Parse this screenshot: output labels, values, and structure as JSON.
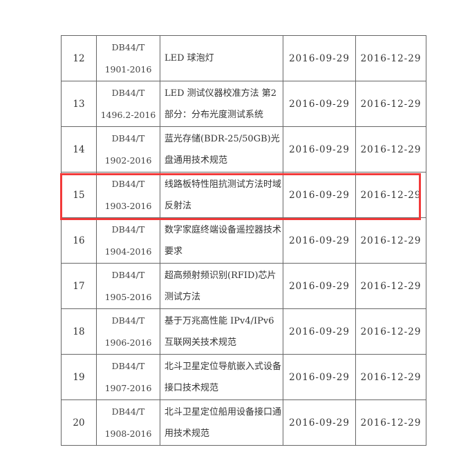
{
  "highlight_color": "#f23a3a",
  "highlighted_row": "15",
  "rows": [
    {
      "no": "12",
      "code_prefix": "DB44/T",
      "code_num": "1901-2016",
      "title": "LED 球泡灯",
      "issue_date": "2016-09-29",
      "effective_date": "2016-12-29"
    },
    {
      "no": "13",
      "code_prefix": "DB44/T",
      "code_num": "1496.2-2016",
      "title": "LED 测试仪器校准方法 第2部分：分布光度测试系统",
      "issue_date": "2016-09-29",
      "effective_date": "2016-12-29"
    },
    {
      "no": "14",
      "code_prefix": "DB44/T",
      "code_num": "1902-2016",
      "title": "蓝光存储(BDR-25/50GB)光盘通用技术规范",
      "issue_date": "2016-09-29",
      "effective_date": "2016-12-29"
    },
    {
      "no": "15",
      "code_prefix": "DB44/T",
      "code_num": "1903-2016",
      "title": "线路板特性阻抗测试方法时域反射法",
      "issue_date": "2016-09-29",
      "effective_date": "2016-12-29"
    },
    {
      "no": "16",
      "code_prefix": "DB44/T",
      "code_num": "1904-2016",
      "title": "数字家庭终端设备遥控器技术要求",
      "issue_date": "2016-09-29",
      "effective_date": "2016-12-29"
    },
    {
      "no": "17",
      "code_prefix": "DB44/T",
      "code_num": "1905-2016",
      "title": "超高频射频识别(RFID)芯片测试方法",
      "issue_date": "2016-09-29",
      "effective_date": "2016-12-29"
    },
    {
      "no": "18",
      "code_prefix": "DB44/T",
      "code_num": "1906-2016",
      "title": "基于万兆高性能 IPv4/IPv6互联网关技术规范",
      "issue_date": "2016-09-29",
      "effective_date": "2016-12-29"
    },
    {
      "no": "19",
      "code_prefix": "DB44/T",
      "code_num": "1907-2016",
      "title": "北斗卫星定位导航嵌入式设备接口技术规范",
      "issue_date": "2016-09-29",
      "effective_date": "2016-12-29"
    },
    {
      "no": "20",
      "code_prefix": "DB44/T",
      "code_num": "1908-2016",
      "title": "北斗卫星定位船用设备接口通用技术规范",
      "issue_date": "2016-09-29",
      "effective_date": "2016-12-29"
    }
  ]
}
